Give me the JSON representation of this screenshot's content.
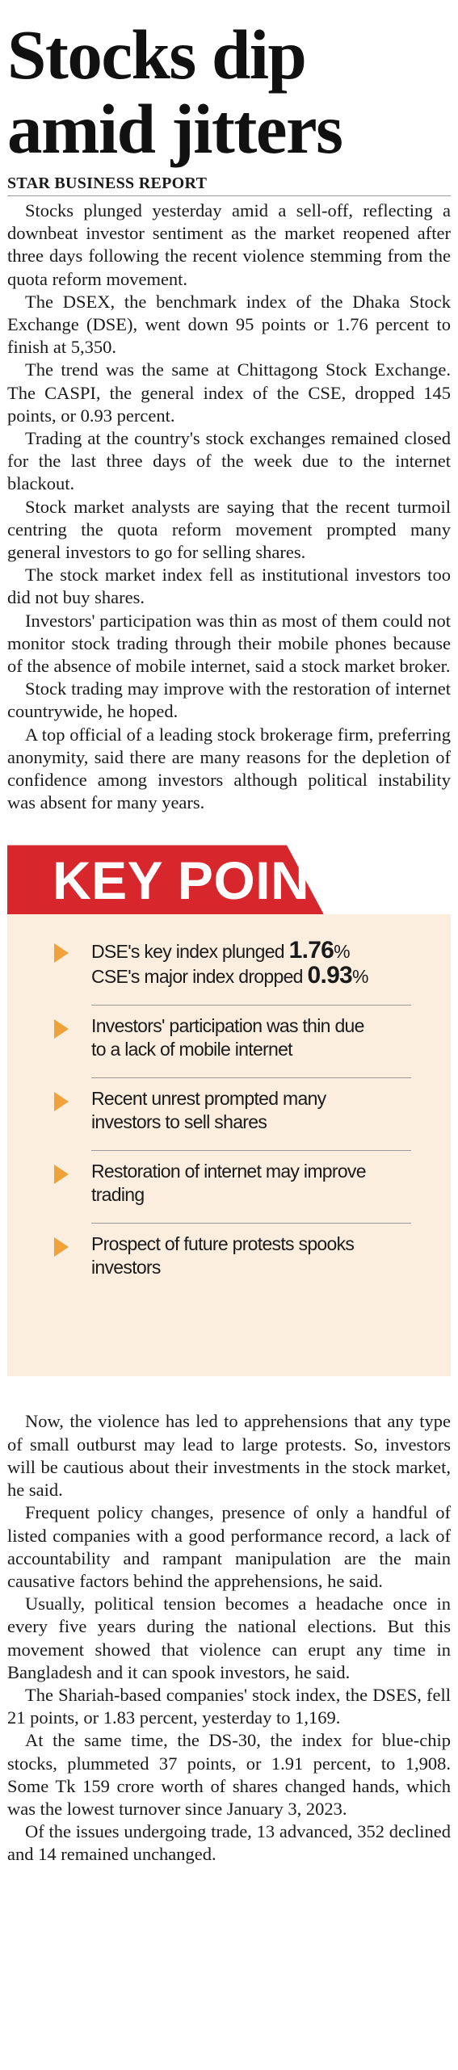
{
  "headline": {
    "line1": "Stocks dip",
    "line2": "amid jitters"
  },
  "byline": "STAR BUSINESS REPORT",
  "body_top": [
    "Stocks plunged yesterday amid a sell-off, reflecting a downbeat investor sentiment as the market reopened after three days following the recent violence stemming from the quota reform movement.",
    "The DSEX, the benchmark index of the Dhaka Stock Exchange (DSE), went down 95 points or 1.76 percent to finish at 5,350.",
    "The trend was the same at Chittagong Stock Exchange. The CASPI, the general index of the CSE, dropped 145 points, or 0.93 percent.",
    "Trading at the country's stock exchanges remained closed for the last three days of the week due to the internet blackout.",
    "Stock market analysts are saying that the recent turmoil centring the quota reform movement prompted many general investors to go for selling shares.",
    "The stock market index fell as institutional investors too did not buy shares.",
    "Investors' participation was thin as most of them could not monitor stock trading through their mobile phones because of the absence of mobile internet, said a stock market broker.",
    "Stock trading may improve with the restoration of internet countrywide, he hoped.",
    "A top official of a leading stock brokerage firm, preferring anonymity, said there are many reasons for the depletion of confidence among investors although political instability was absent for many years."
  ],
  "key_points": {
    "title": "KEY POINTS",
    "item1": {
      "line1_text": "DSE's key index plunged ",
      "line1_num": "1.76",
      "line1_unit": "%",
      "line2_text": "CSE's major index dropped ",
      "line2_num": "0.93",
      "line2_unit": "%"
    },
    "items": [
      {
        "line1": "Investors' participation was thin due",
        "line2": "to a lack of mobile internet"
      },
      {
        "line1": "Recent unrest prompted many",
        "line2": "investors to sell shares"
      },
      {
        "line1": "Restoration of internet may improve",
        "line2": "trading"
      },
      {
        "line1": "Prospect of future protests spooks",
        "line2": "investors"
      }
    ]
  },
  "body_bottom": [
    "Now, the violence has led to apprehensions that any type of small outburst may lead to large protests. So, investors will be cautious about their investments in the stock market, he said.",
    "Frequent policy changes, presence of only a handful of listed companies with a good performance record, a lack of accountability and rampant manipulation are the main causative factors behind the apprehensions, he said.",
    "Usually, political tension becomes a headache once in every five years during the national elections. But this movement showed that violence can erupt any time in Bangladesh and it can spook investors, he said.",
    "The Shariah-based companies' stock index, the DSES, fell 21 points, or 1.83 percent, yesterday to 1,169.",
    "At the same time, the DS-30, the index for blue-chip stocks, plummeted 37 points, or 1.91 percent, to 1,908. Some Tk 159 crore worth of shares changed hands, which was the lowest turnover since January 3, 2023.",
    "Of the issues undergoing trade, 13 advanced, 352 declined and 14 remained unchanged."
  ],
  "colors": {
    "banner": "#d8262d",
    "panel": "#fbeedf",
    "arrow": "#f0a23a"
  }
}
